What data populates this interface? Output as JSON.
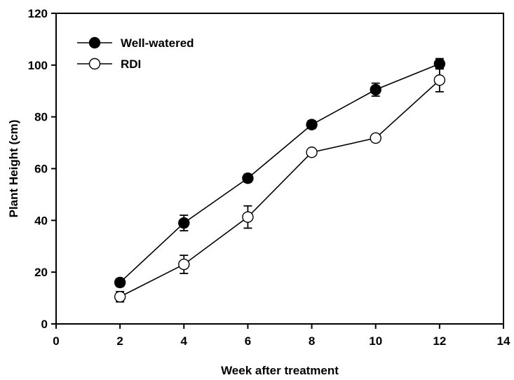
{
  "chart_data": {
    "type": "line",
    "title": "",
    "xlabel": "Week after treatment",
    "ylabel": "Plant Height (cm)",
    "xlim": [
      0,
      14
    ],
    "ylim": [
      0,
      120
    ],
    "xticks": [
      0,
      2,
      4,
      6,
      8,
      10,
      12,
      14
    ],
    "yticks": [
      0,
      20,
      40,
      60,
      80,
      100,
      120
    ],
    "grid": false,
    "legend_position": "top-left",
    "series": [
      {
        "name": "Well-watered",
        "marker": "filled-circle",
        "color": "#000000",
        "x": [
          2,
          4,
          6,
          8,
          10,
          12
        ],
        "y": [
          16,
          39,
          56.3,
          77,
          90.5,
          100.5
        ],
        "err": [
          1.5,
          3,
          1.5,
          1.5,
          2.5,
          2
        ]
      },
      {
        "name": "RDI",
        "marker": "open-circle",
        "color": "#000000",
        "x": [
          2,
          4,
          6,
          8,
          10,
          12
        ],
        "y": [
          10.5,
          23,
          41.3,
          66.3,
          71.8,
          94.2
        ],
        "err": [
          2,
          3.5,
          4.3,
          1.3,
          1.2,
          4.5
        ]
      }
    ]
  }
}
